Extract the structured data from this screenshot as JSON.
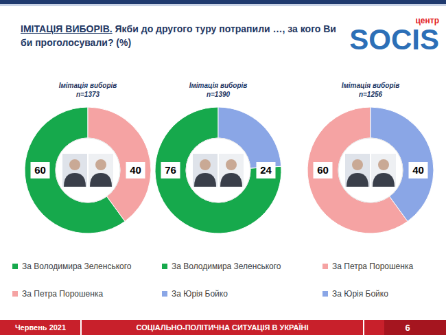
{
  "header": {
    "title_lead": "ІМІТАЦІЯ ВИБОРІВ.",
    "title": "Якби до другого туру потрапили …, за кого Ви би проголосували? (%)",
    "logo_top": "центр",
    "logo": "SOCIS"
  },
  "chart_data": [
    {
      "type": "donut",
      "title": "Імітація виборів",
      "subtitle": "n=1373",
      "categories": [
        "За Володимира Зеленського",
        "За Петра Порошенка"
      ],
      "values": [
        60,
        40
      ],
      "colors": [
        "#16a94c",
        "#f5a3a3"
      ],
      "data_labels": true,
      "legend": "bottom"
    },
    {
      "type": "donut",
      "title": "Імітація виборів",
      "subtitle": "n=1390",
      "categories": [
        "За Володимира Зеленського",
        "За Юрія Бойко"
      ],
      "values": [
        76,
        24
      ],
      "colors": [
        "#16a94c",
        "#8aa6e6"
      ],
      "data_labels": true,
      "legend": "bottom"
    },
    {
      "type": "donut",
      "title": "Імітація виборів",
      "subtitle": "n=1256",
      "categories": [
        "За Петра Порошенка",
        "За Юрія Бойко"
      ],
      "values": [
        60,
        40
      ],
      "colors": [
        "#f5a3a3",
        "#8aa6e6"
      ],
      "data_labels": true,
      "legend": "bottom"
    }
  ],
  "footer": {
    "date": "Червень 2021",
    "topic": "СОЦІАЛЬНО-ПОЛІТИЧНА СИТУАЦІЯ В УКРАЇНІ",
    "page": 6
  }
}
